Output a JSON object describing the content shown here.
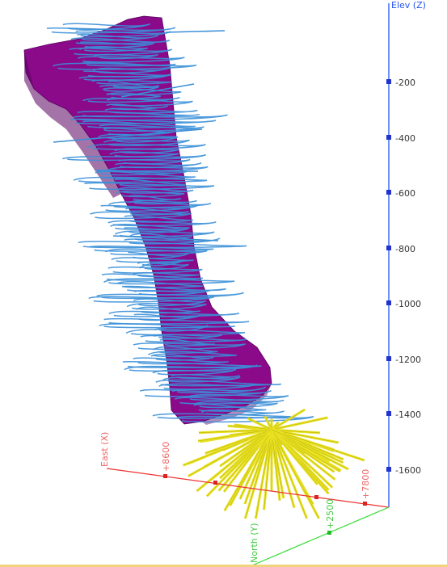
{
  "elevation_axis": {
    "title": "Elev (Z)",
    "color": "#2255ee",
    "ticks": [
      "-200",
      "-400",
      "-600",
      "-800",
      "-1000",
      "-1200",
      "-1400",
      "-1600"
    ]
  },
  "east_axis": {
    "title": "East (X)",
    "color": "#ee3333",
    "ticks": [
      "+8600",
      "+7800"
    ]
  },
  "north_axis": {
    "title": "North (Y)",
    "color": "#33dd33",
    "ticks": [
      "+2500"
    ]
  },
  "colors": {
    "orebody": "#8a0a8a",
    "orebody_shade": "#5a0060",
    "drill_traces": "#3a8fd8",
    "radial_fan": "#e8e020",
    "radial_fan_outline": "#8a8a00"
  }
}
